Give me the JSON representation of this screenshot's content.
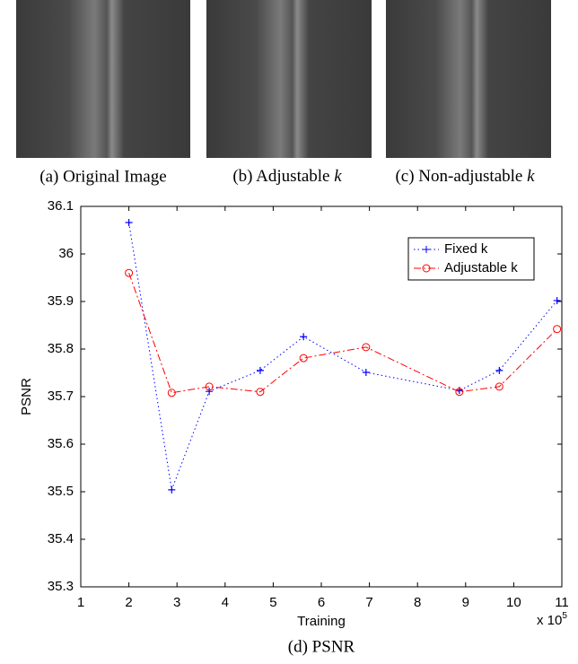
{
  "images": [
    {
      "caption": "(a) Original Image"
    },
    {
      "caption_prefix": "(b) Adjustable",
      "caption_variable": "k"
    },
    {
      "caption_prefix": "(c) Non-adjustable",
      "caption_variable": "k"
    }
  ],
  "chart_data": {
    "type": "line",
    "y_label": "PSNR",
    "x_label": "Training",
    "x_multiplier": "x 10",
    "x_multiplier_exponent": "5",
    "caption": "(d) PSNR",
    "xlim": [
      1,
      11
    ],
    "xticks": [
      1,
      2,
      3,
      4,
      5,
      6,
      7,
      8,
      9,
      10,
      11
    ],
    "ylim": [
      35.3,
      36.1
    ],
    "yticks": [
      35.3,
      35.4,
      35.5,
      35.6,
      35.7,
      35.8,
      35.9,
      36,
      36.1
    ],
    "legend": "upper right",
    "series": [
      {
        "name": "Fixed k",
        "color": "#0000ff",
        "marker": "plus",
        "dash": "dotted",
        "x": [
          2,
          2.89,
          3.67,
          4.73,
          5.63,
          6.93,
          8.87,
          9.7,
          10.9
        ],
        "values": [
          36.066,
          35.504,
          35.711,
          35.755,
          35.826,
          35.751,
          35.713,
          35.755,
          35.902
        ]
      },
      {
        "name": "Adjustable k",
        "color": "#ff0000",
        "marker": "circle",
        "dash": "dashdot",
        "x": [
          2,
          2.89,
          3.67,
          4.73,
          5.63,
          6.93,
          8.87,
          9.7,
          10.9
        ],
        "values": [
          35.96,
          35.708,
          35.721,
          35.71,
          35.781,
          35.804,
          35.71,
          35.721,
          35.842
        ]
      }
    ]
  }
}
